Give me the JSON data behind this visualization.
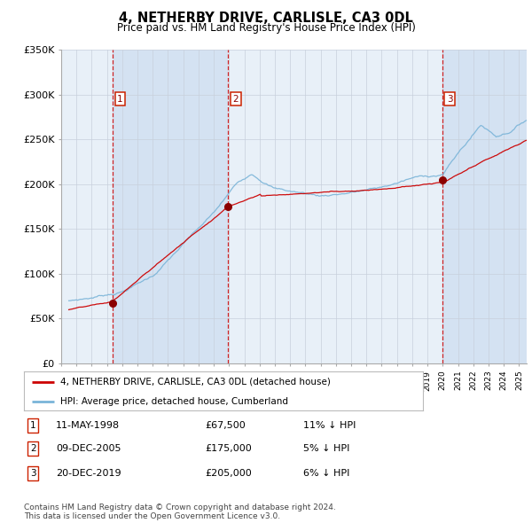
{
  "title": "4, NETHERBY DRIVE, CARLISLE, CA3 0DL",
  "subtitle": "Price paid vs. HM Land Registry's House Price Index (HPI)",
  "hpi_label": "HPI: Average price, detached house, Cumberland",
  "property_label": "4, NETHERBY DRIVE, CARLISLE, CA3 0DL (detached house)",
  "sale_points": [
    {
      "date": "11-MAY-1998",
      "price": 67500,
      "label": "1",
      "pct": "11%",
      "dir": "↓"
    },
    {
      "date": "09-DEC-2005",
      "price": 175000,
      "label": "2",
      "pct": "5%",
      "dir": "↓"
    },
    {
      "date": "20-DEC-2019",
      "price": 205000,
      "label": "3",
      "pct": "6%",
      "dir": "↓"
    }
  ],
  "sale_years": [
    1998.37,
    2005.94,
    2019.97
  ],
  "sale_prices": [
    67500,
    175000,
    205000
  ],
  "hpi_color": "#7ab4d8",
  "property_color": "#cc0000",
  "vline_color": "#cc0000",
  "plot_bg": "#e8f0f8",
  "grid_color": "#c8d0dc",
  "ylim": [
    0,
    350000
  ],
  "yticks": [
    0,
    50000,
    100000,
    150000,
    200000,
    250000,
    300000,
    350000
  ],
  "xstart": 1995.5,
  "xend": 2025.5,
  "footer": "Contains HM Land Registry data © Crown copyright and database right 2024.\nThis data is licensed under the Open Government Licence v3.0."
}
